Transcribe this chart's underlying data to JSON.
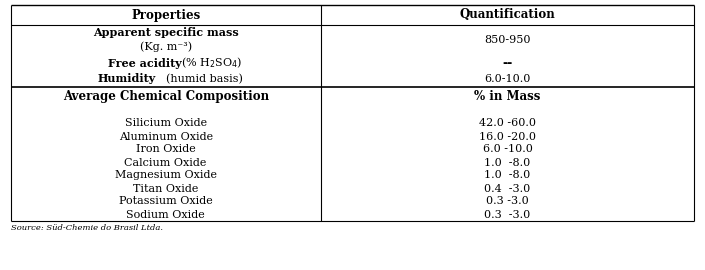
{
  "col_headers": [
    "Properties",
    "Quantification"
  ],
  "section_header": [
    "Average Chemical Composition",
    "% in Mass"
  ],
  "chemical_rows": [
    [
      "Silicium Oxide",
      "42.0 -60.0"
    ],
    [
      "Aluminum Oxide",
      "16.0 -20.0"
    ],
    [
      "Iron Oxide",
      "6.0 -10.0"
    ],
    [
      "Calcium Oxide",
      "1.0  -8.0"
    ],
    [
      "Magnesium Oxide",
      "1.0  -8.0"
    ],
    [
      "Titan Oxide",
      "0.4  -3.0"
    ],
    [
      "Potassium Oxide",
      "0.3 -3.0"
    ],
    [
      "Sodium Oxide",
      "0.3  -3.0"
    ]
  ],
  "source_text": "Source: Süd-Chemie do Brasil Ltda.",
  "bg_color": "#ffffff",
  "fs": 8.0,
  "hfs": 8.5,
  "col_split": 0.455
}
